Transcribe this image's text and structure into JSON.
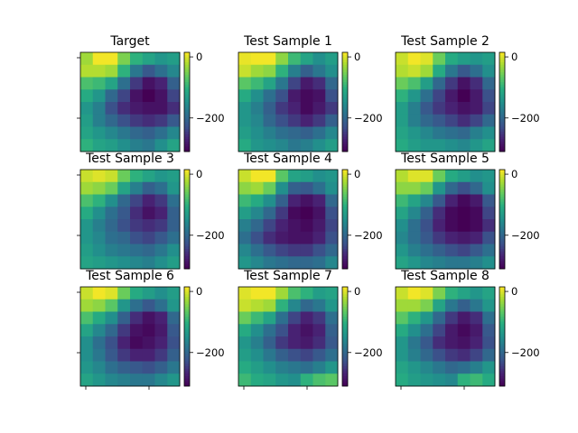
{
  "chart_data": {
    "type": "heatmap",
    "grid_size": [
      8,
      8
    ],
    "colormap": "viridis",
    "vmin": -310,
    "vmax": 15,
    "colorbar_ticks": [
      0,
      -200
    ],
    "colorbar_tick_labels": [
      "0",
      "−200"
    ],
    "panels": [
      {
        "title": "Target",
        "values": [
          [
            -30,
            10,
            10,
            -50,
            -100,
            -120,
            -140,
            -130
          ],
          [
            -20,
            -20,
            -30,
            -100,
            -180,
            -220,
            -190,
            -160
          ],
          [
            -80,
            -90,
            -120,
            -190,
            -250,
            -290,
            -270,
            -210
          ],
          [
            -110,
            -140,
            -200,
            -240,
            -290,
            -310,
            -290,
            -240
          ],
          [
            -140,
            -170,
            -230,
            -260,
            -280,
            -290,
            -290,
            -260
          ],
          [
            -130,
            -170,
            -200,
            -230,
            -250,
            -260,
            -250,
            -220
          ],
          [
            -120,
            -140,
            -160,
            -180,
            -200,
            -210,
            -190,
            -160
          ],
          [
            -100,
            -120,
            -130,
            -150,
            -170,
            -180,
            -150,
            -120
          ]
        ]
      },
      {
        "title": "Test Sample 1",
        "values": [
          [
            5,
            10,
            10,
            -40,
            -90,
            -120,
            -150,
            -130
          ],
          [
            -10,
            -30,
            -40,
            -100,
            -170,
            -210,
            -180,
            -150
          ],
          [
            -70,
            -90,
            -120,
            -180,
            -240,
            -280,
            -260,
            -200
          ],
          [
            -110,
            -150,
            -190,
            -230,
            -280,
            -300,
            -290,
            -230
          ],
          [
            -140,
            -170,
            -210,
            -250,
            -270,
            -300,
            -280,
            -250
          ],
          [
            -140,
            -160,
            -200,
            -230,
            -250,
            -270,
            -250,
            -210
          ],
          [
            -130,
            -150,
            -170,
            -190,
            -200,
            -210,
            -190,
            -160
          ],
          [
            -110,
            -140,
            -150,
            -160,
            -180,
            -170,
            -150,
            -130
          ]
        ]
      },
      {
        "title": "Test Sample 2",
        "values": [
          [
            -10,
            10,
            0,
            -60,
            -110,
            -130,
            -140,
            -130
          ],
          [
            -20,
            -10,
            -30,
            -110,
            -180,
            -220,
            -190,
            -150
          ],
          [
            -60,
            -80,
            -130,
            -200,
            -250,
            -290,
            -260,
            -200
          ],
          [
            -100,
            -140,
            -190,
            -240,
            -280,
            -310,
            -280,
            -230
          ],
          [
            -130,
            -170,
            -220,
            -250,
            -270,
            -290,
            -280,
            -240
          ],
          [
            -130,
            -170,
            -200,
            -220,
            -240,
            -260,
            -240,
            -200
          ],
          [
            -120,
            -140,
            -160,
            -180,
            -190,
            -200,
            -170,
            -150
          ],
          [
            -110,
            -130,
            -140,
            -140,
            -150,
            -160,
            -140,
            -120
          ]
        ]
      },
      {
        "title": "Test Sample 3",
        "values": [
          [
            -10,
            0,
            -10,
            -60,
            -100,
            -120,
            -140,
            -130
          ],
          [
            -30,
            -40,
            -60,
            -120,
            -170,
            -210,
            -190,
            -140
          ],
          [
            -80,
            -100,
            -150,
            -200,
            -240,
            -270,
            -250,
            -190
          ],
          [
            -110,
            -150,
            -190,
            -220,
            -260,
            -290,
            -270,
            -210
          ],
          [
            -140,
            -170,
            -200,
            -230,
            -250,
            -260,
            -250,
            -210
          ],
          [
            -140,
            -160,
            -190,
            -200,
            -230,
            -240,
            -220,
            -190
          ],
          [
            -130,
            -150,
            -170,
            -180,
            -190,
            -200,
            -180,
            -150
          ],
          [
            -120,
            -130,
            -140,
            -150,
            -160,
            -170,
            -150,
            -130
          ]
        ]
      },
      {
        "title": "Test Sample 4",
        "values": [
          [
            -10,
            10,
            10,
            -70,
            -120,
            -130,
            -150,
            -140
          ],
          [
            -40,
            -30,
            -60,
            -150,
            -210,
            -220,
            -190,
            -150
          ],
          [
            -90,
            -110,
            -150,
            -210,
            -270,
            -290,
            -270,
            -200
          ],
          [
            -130,
            -160,
            -200,
            -250,
            -300,
            -310,
            -290,
            -230
          ],
          [
            -170,
            -200,
            -240,
            -270,
            -290,
            -300,
            -280,
            -240
          ],
          [
            -190,
            -230,
            -260,
            -280,
            -290,
            -290,
            -270,
            -230
          ],
          [
            -160,
            -190,
            -220,
            -240,
            -250,
            -250,
            -230,
            -200
          ],
          [
            -140,
            -160,
            -180,
            -190,
            -200,
            -200,
            -190,
            -160
          ]
        ]
      },
      {
        "title": "Test Sample 5",
        "values": [
          [
            -20,
            0,
            0,
            -60,
            -110,
            -130,
            -150,
            -140
          ],
          [
            -40,
            -40,
            -60,
            -140,
            -200,
            -230,
            -200,
            -150
          ],
          [
            -90,
            -120,
            -160,
            -220,
            -270,
            -300,
            -280,
            -220
          ],
          [
            -120,
            -160,
            -210,
            -260,
            -300,
            -310,
            -300,
            -240
          ],
          [
            -150,
            -190,
            -230,
            -270,
            -300,
            -310,
            -300,
            -260
          ],
          [
            -160,
            -190,
            -220,
            -250,
            -270,
            -280,
            -270,
            -230
          ],
          [
            -140,
            -170,
            -190,
            -210,
            -230,
            -240,
            -220,
            -190
          ],
          [
            -120,
            -140,
            -160,
            -170,
            -180,
            -180,
            -170,
            -150
          ]
        ]
      },
      {
        "title": "Test Sample 6",
        "values": [
          [
            -10,
            10,
            0,
            -60,
            -110,
            -130,
            -150,
            -130
          ],
          [
            -30,
            -40,
            -70,
            -140,
            -190,
            -220,
            -190,
            -140
          ],
          [
            -80,
            -110,
            -150,
            -210,
            -260,
            -290,
            -270,
            -200
          ],
          [
            -120,
            -160,
            -200,
            -250,
            -290,
            -300,
            -280,
            -220
          ],
          [
            -150,
            -190,
            -230,
            -270,
            -300,
            -290,
            -270,
            -230
          ],
          [
            -150,
            -180,
            -220,
            -250,
            -270,
            -270,
            -250,
            -210
          ],
          [
            -140,
            -160,
            -190,
            -210,
            -220,
            -230,
            -210,
            -180
          ],
          [
            -120,
            -140,
            -160,
            -170,
            -180,
            -180,
            -160,
            -140
          ]
        ]
      },
      {
        "title": "Test Sample 7",
        "values": [
          [
            0,
            10,
            10,
            -30,
            -80,
            -100,
            -130,
            -120
          ],
          [
            -10,
            -20,
            -30,
            -100,
            -160,
            -200,
            -180,
            -140
          ],
          [
            -60,
            -90,
            -120,
            -190,
            -240,
            -270,
            -250,
            -190
          ],
          [
            -110,
            -150,
            -190,
            -230,
            -270,
            -290,
            -270,
            -210
          ],
          [
            -140,
            -170,
            -210,
            -250,
            -270,
            -280,
            -260,
            -220
          ],
          [
            -130,
            -150,
            -180,
            -210,
            -230,
            -240,
            -220,
            -190
          ],
          [
            -110,
            -130,
            -150,
            -170,
            -180,
            -190,
            -170,
            -140
          ],
          [
            -90,
            -110,
            -120,
            -140,
            -150,
            -100,
            -80,
            -70
          ]
        ]
      },
      {
        "title": "Test Sample 8",
        "values": [
          [
            -10,
            10,
            0,
            -50,
            -100,
            -120,
            -140,
            -120
          ],
          [
            -30,
            -30,
            -50,
            -120,
            -180,
            -210,
            -180,
            -140
          ],
          [
            -70,
            -100,
            -140,
            -200,
            -250,
            -280,
            -260,
            -190
          ],
          [
            -110,
            -150,
            -190,
            -240,
            -280,
            -300,
            -280,
            -220
          ],
          [
            -140,
            -180,
            -220,
            -260,
            -280,
            -290,
            -270,
            -230
          ],
          [
            -140,
            -170,
            -200,
            -230,
            -250,
            -260,
            -240,
            -200
          ],
          [
            -120,
            -140,
            -160,
            -180,
            -200,
            -190,
            -170,
            -140
          ],
          [
            -110,
            -130,
            -140,
            -150,
            -160,
            -100,
            -90,
            -110
          ]
        ]
      }
    ]
  }
}
